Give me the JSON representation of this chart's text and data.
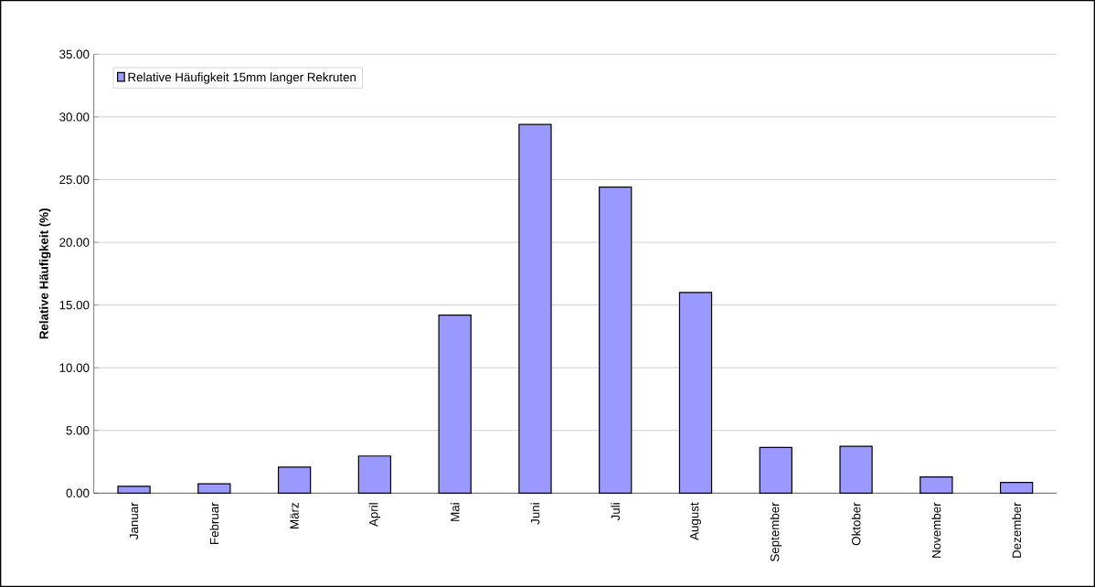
{
  "chart_data": {
    "type": "bar",
    "ylabel": "Relative Häufigkeit (%)",
    "categories": [
      "Januar",
      "Februar",
      "März",
      "April",
      "Mai",
      "Juni",
      "Juli",
      "August",
      "September",
      "Oktober",
      "November",
      "Dezember"
    ],
    "series": [
      {
        "name": "Relative Häufigkeit 15mm langer Rekruten",
        "color": "#9999ff",
        "values": [
          0.55,
          0.75,
          2.07,
          2.96,
          14.2,
          29.4,
          24.4,
          16.0,
          3.64,
          3.74,
          1.29,
          0.85
        ]
      }
    ],
    "ylim": [
      0,
      35
    ],
    "yticks": [
      {
        "value": 0,
        "label": "0.00"
      },
      {
        "value": 5,
        "label": "5.00"
      },
      {
        "value": 10,
        "label": "10.00"
      },
      {
        "value": 15,
        "label": "15.00"
      },
      {
        "value": 20,
        "label": "20.00"
      },
      {
        "value": 25,
        "label": "25.00"
      },
      {
        "value": 30,
        "label": "30.00"
      },
      {
        "value": 35,
        "label": "35.00"
      }
    ],
    "grid": "y",
    "legend": "top left"
  }
}
